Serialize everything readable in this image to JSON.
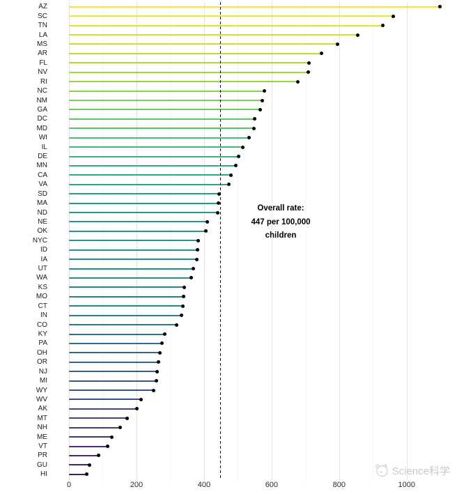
{
  "page": {
    "background": "#ffffff"
  },
  "chart_data": {
    "type": "bar",
    "variant": "lollipop",
    "orientation": "horizontal",
    "title": "",
    "xlabel": "",
    "ylabel": "",
    "xlim": [
      0,
      1136
    ],
    "x_major_ticks": [
      0,
      200,
      400,
      600,
      800,
      1000
    ],
    "x_tick_labels": [
      "0",
      "200",
      "400",
      "600",
      "800",
      "1000"
    ],
    "x_minor_ticks": [
      100,
      300,
      500,
      700,
      900
    ],
    "grid": "vertical-major-and-minor",
    "legend": "none",
    "point_color": "#000000",
    "categories": [
      "AZ",
      "SC",
      "TN",
      "LA",
      "MS",
      "AR",
      "FL",
      "NV",
      "RI",
      "NC",
      "NM",
      "GA",
      "DC",
      "MD",
      "WI",
      "IL",
      "DE",
      "MN",
      "CA",
      "VA",
      "SD",
      "MA",
      "ND",
      "NE",
      "OK",
      "NYC",
      "ID",
      "IA",
      "UT",
      "WA",
      "KS",
      "MO",
      "CT",
      "IN",
      "CO",
      "KY",
      "PA",
      "OH",
      "OR",
      "NJ",
      "MI",
      "WY",
      "WV",
      "AK",
      "MT",
      "NH",
      "ME",
      "VT",
      "PR",
      "GU",
      "HI"
    ],
    "values": [
      1098,
      960,
      930,
      856,
      795,
      747,
      711,
      708,
      678,
      579,
      572,
      566,
      549,
      547,
      534,
      514,
      502,
      494,
      480,
      473,
      445,
      442,
      440,
      409,
      405,
      383,
      381,
      379,
      368,
      362,
      342,
      340,
      337,
      333,
      318,
      284,
      275,
      270,
      266,
      261,
      258,
      250,
      213,
      201,
      172,
      151,
      126,
      115,
      87,
      60,
      52
    ],
    "colors": [
      "#fde725",
      "#f0e526",
      "#e2e427",
      "#d4e228",
      "#c7e02a",
      "#b9df2b",
      "#acdc31",
      "#9fd939",
      "#91d642",
      "#84d34a",
      "#77d053",
      "#6acc5a",
      "#5fc860",
      "#55c467",
      "#4abf6d",
      "#3fbb73",
      "#35b779",
      "#31b27c",
      "#2dad7f",
      "#28a982",
      "#24a485",
      "#209f88",
      "#1f9c89",
      "#209a8a",
      "#20978b",
      "#20958b",
      "#21938c",
      "#21908c",
      "#228d8d",
      "#238a8d",
      "#24878d",
      "#25858e",
      "#26828e",
      "#287d8e",
      "#2a788e",
      "#2c738e",
      "#2e6e8e",
      "#31698e",
      "#33648d",
      "#355e8c",
      "#38588b",
      "#3a538a",
      "#3d4d8a",
      "#3f4788",
      "#414184",
      "#433a81",
      "#44347e",
      "#462e7b",
      "#482777",
      "#472070",
      "#46186a"
    ],
    "reference_line": {
      "value": 447,
      "style": "dashed",
      "color": "#000000"
    }
  },
  "annotation": {
    "lines": [
      "Overall rate:",
      "447 per 100,000",
      "children"
    ]
  },
  "watermark": {
    "text": "Science科学",
    "color": "#c4c4c4"
  }
}
